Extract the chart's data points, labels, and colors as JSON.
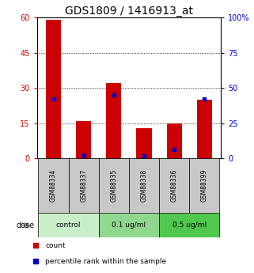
{
  "title": "GDS1809 / 1416913_at",
  "samples": [
    "GSM88334",
    "GSM88337",
    "GSM88335",
    "GSM88338",
    "GSM88336",
    "GSM88399"
  ],
  "red_values": [
    59,
    16,
    32,
    13,
    15,
    25
  ],
  "blue_pct": [
    42,
    2.5,
    45,
    1.5,
    6,
    42
  ],
  "ylim_left": [
    0,
    60
  ],
  "ylim_right": [
    0,
    100
  ],
  "yticks_left": [
    0,
    15,
    30,
    45,
    60
  ],
  "yticks_right": [
    0,
    25,
    50,
    75,
    100
  ],
  "ytick_labels_right": [
    "0",
    "25",
    "50",
    "75",
    "100%"
  ],
  "dose_groups": [
    {
      "label": "control",
      "indices": [
        0,
        1
      ],
      "color": "#c8efc8"
    },
    {
      "label": "0.1 ug/ml",
      "indices": [
        2,
        3
      ],
      "color": "#90d890"
    },
    {
      "label": "0.5 ug/ml",
      "indices": [
        4,
        5
      ],
      "color": "#50c850"
    }
  ],
  "bar_width": 0.5,
  "bar_color": "#cc0000",
  "blue_color": "#0000cc",
  "title_fontsize": 10,
  "tick_fontsize": 7,
  "label_color_left": "#cc0000",
  "label_color_right": "#0000cc",
  "bg_color": "#ffffff",
  "sample_bg_color": "#c8c8c8",
  "dose_label": "dose"
}
